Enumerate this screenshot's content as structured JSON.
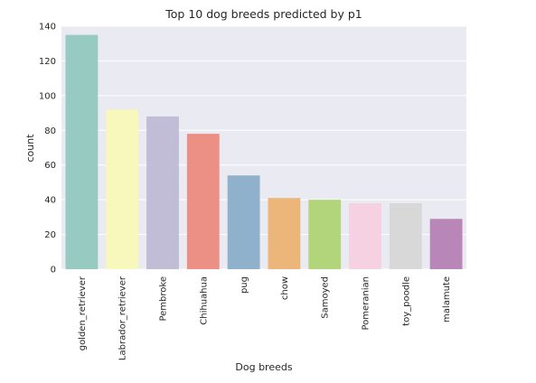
{
  "chart_data": {
    "type": "bar",
    "title": "Top 10 dog breeds predicted by p1",
    "xlabel": "Dog breeds",
    "ylabel": "count",
    "categories": [
      "golden_retriever",
      "Labrador_retriever",
      "Pembroke",
      "Chihuahua",
      "pug",
      "chow",
      "Samoyed",
      "Pomeranian",
      "toy_poodle",
      "malamute"
    ],
    "values": [
      135,
      92,
      88,
      78,
      54,
      41,
      40,
      38,
      38,
      29
    ],
    "colors": [
      "#97cbc1",
      "#f8f8bd",
      "#c2bdd6",
      "#ec8f84",
      "#8fb1cb",
      "#ecb57a",
      "#b2d47b",
      "#f5d1e2",
      "#d8d8d8",
      "#b886b7"
    ],
    "ylim": [
      0,
      140
    ],
    "yticks": [
      0,
      20,
      40,
      60,
      80,
      100,
      120,
      140
    ],
    "grid": true,
    "background": "#eaeaf2",
    "gridColor": "#ffffff"
  }
}
